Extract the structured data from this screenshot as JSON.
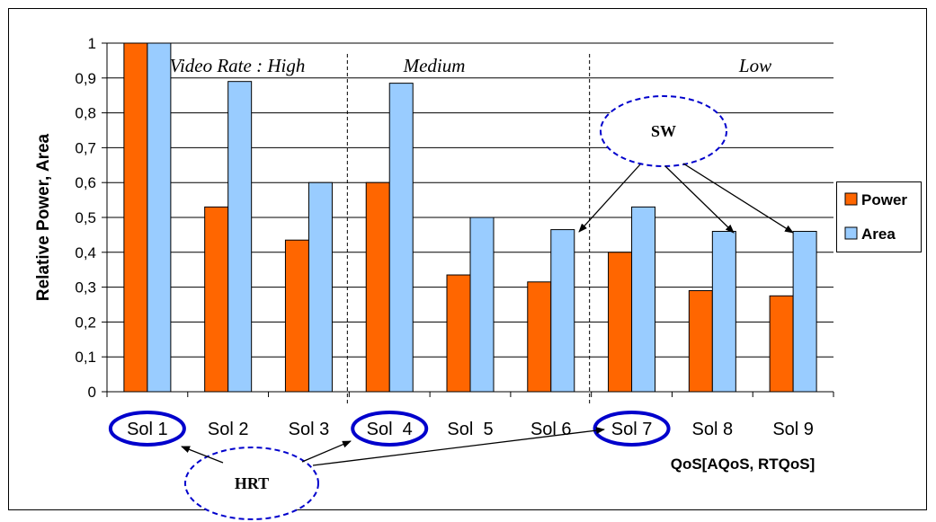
{
  "chart_data": {
    "type": "bar",
    "categories": [
      "Sol 1",
      "Sol 2",
      "Sol 3",
      "Sol  4",
      "Sol  5",
      "Sol 6",
      "Sol 7",
      "Sol 8",
      "Sol 9"
    ],
    "series": [
      {
        "name": "Power",
        "values": [
          1.0,
          0.53,
          0.435,
          0.6,
          0.335,
          0.315,
          0.4,
          0.29,
          0.275
        ],
        "color": "#ff6600"
      },
      {
        "name": "Area",
        "values": [
          1.0,
          0.89,
          0.6,
          0.885,
          0.5,
          0.465,
          0.53,
          0.46,
          0.46
        ],
        "color": "#99ccff"
      }
    ],
    "ylabel": "Relative Power, Area",
    "xlabel": "QoS[AQoS, RTQoS]",
    "ylim": [
      0,
      1
    ],
    "yticks": [
      0,
      0.1,
      0.2,
      0.3,
      0.4,
      0.5,
      0.6,
      0.7,
      0.8,
      0.9,
      1
    ],
    "ytick_labels": [
      "0",
      "0,1",
      "0,2",
      "0,3",
      "0,4",
      "0,5",
      "0,6",
      "0,7",
      "0,8",
      "0,9",
      "1"
    ],
    "grid": "horizontal",
    "legend_position": "right",
    "groups": [
      {
        "label": "Video Rate : High"
      },
      {
        "label": "Medium"
      },
      {
        "label": "Low"
      }
    ],
    "annotations": {
      "sw": "SW",
      "hrt": "HRT"
    },
    "highlighted_categories": [
      "Sol 1",
      "Sol  4",
      "Sol 7"
    ],
    "annotation_color": "#0000cc"
  }
}
